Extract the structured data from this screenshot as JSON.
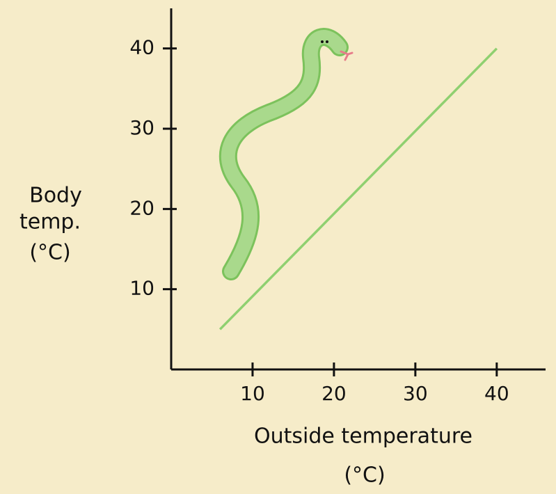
{
  "chart_data": {
    "type": "line",
    "ylabel": [
      "Body",
      "temp.",
      "(°C)"
    ],
    "xlabel": [
      "Outside temperature",
      "(°C)"
    ],
    "x": [
      6,
      40
    ],
    "series": [
      {
        "color": "#8fd070",
        "values": [
          5,
          40
        ]
      }
    ],
    "xlim": [
      0,
      46
    ],
    "ylim": [
      0,
      45
    ],
    "xticks": [
      10,
      20,
      30,
      40
    ],
    "yticks": [
      10,
      20,
      30,
      40
    ]
  }
}
